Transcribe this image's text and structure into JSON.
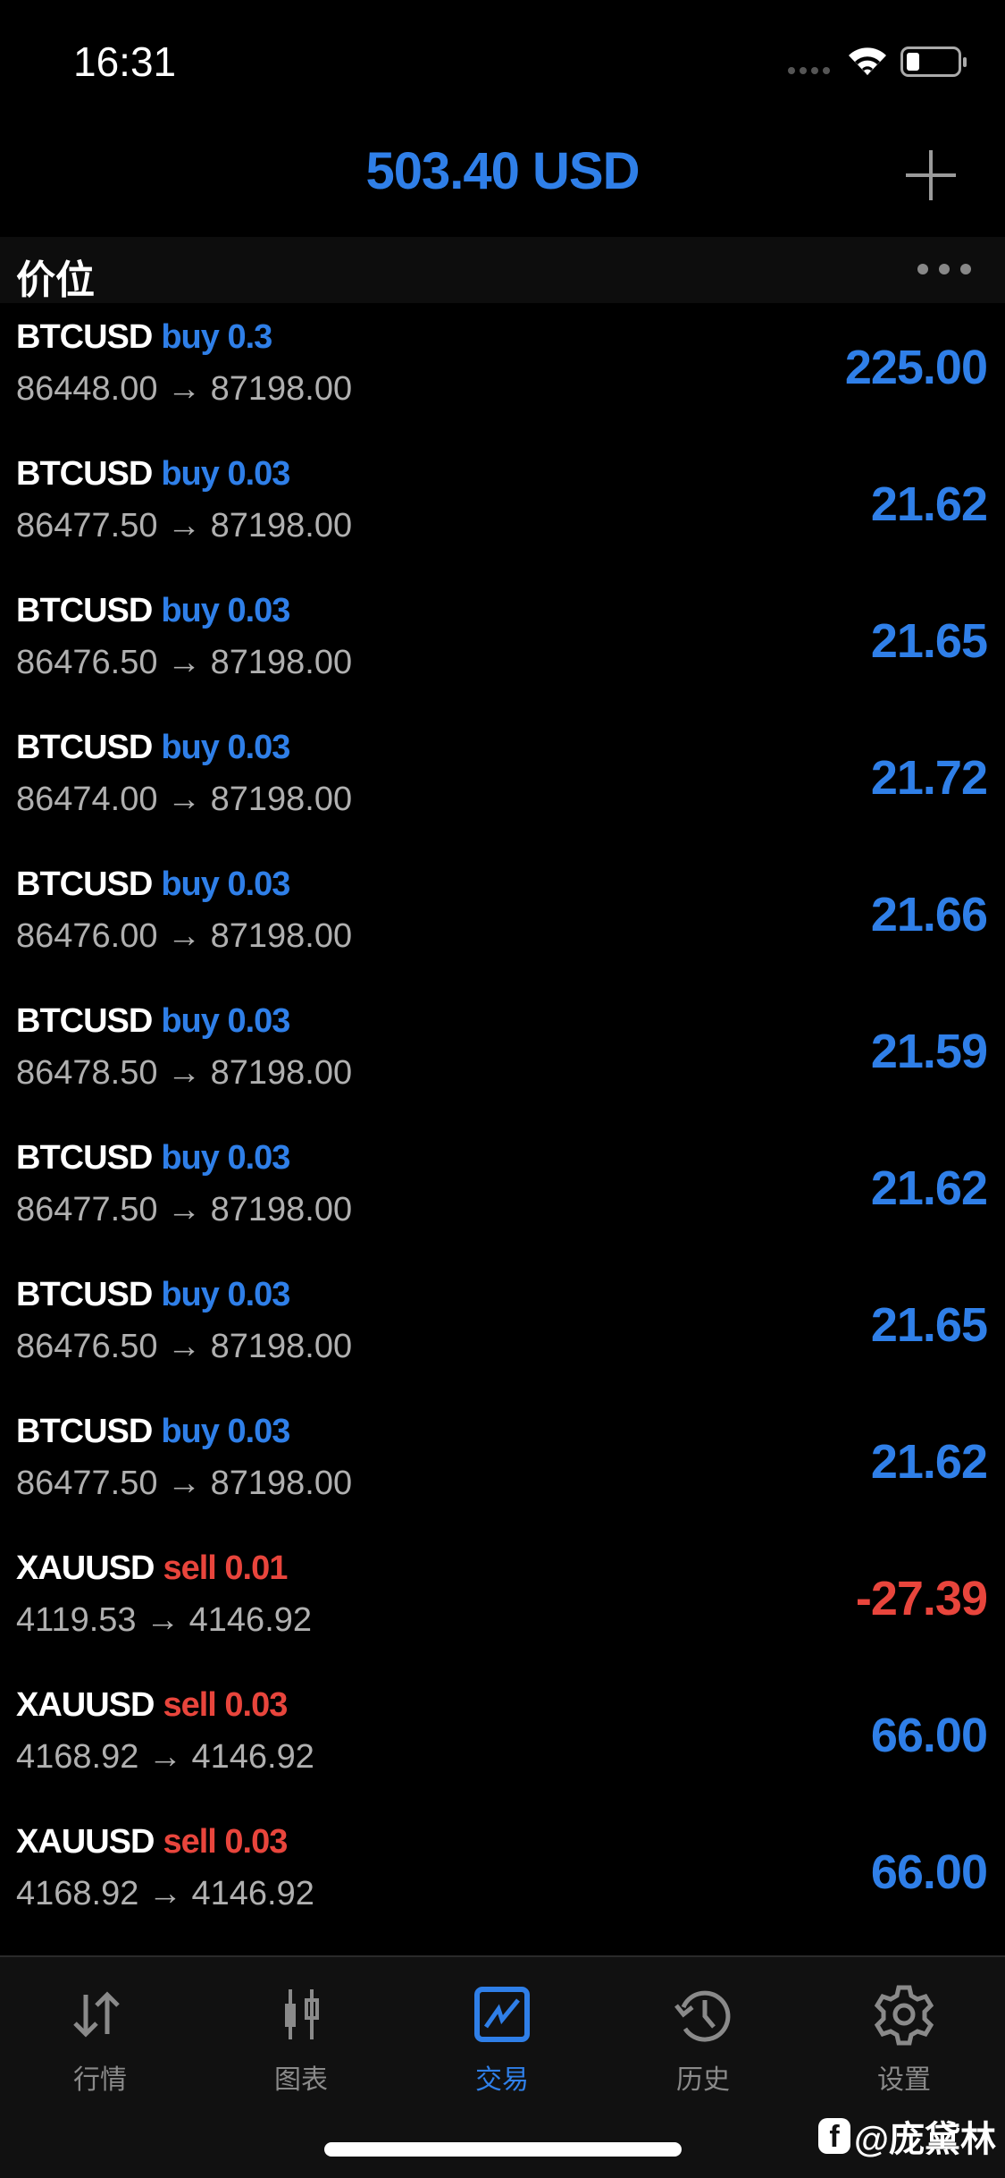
{
  "status_bar": {
    "time": "16:31",
    "signal_icon": "cellular-signal-icon",
    "wifi_icon": "wifi-icon",
    "battery_icon": "battery-low-icon"
  },
  "header": {
    "balance": "503.40 USD",
    "add_icon": "plus-icon"
  },
  "section": {
    "label": "价位",
    "more_icon": "ellipsis-icon"
  },
  "colors": {
    "accent": "#2f7fe8",
    "sell": "#e8453c",
    "price": "#b0b0b0"
  },
  "positions": [
    {
      "symbol": "BTCUSD",
      "side": "buy 0.3",
      "type": "buy",
      "prices": "86448.00 → 87198.00",
      "profit": "225.00"
    },
    {
      "symbol": "BTCUSD",
      "side": "buy 0.03",
      "type": "buy",
      "prices": "86477.50 → 87198.00",
      "profit": "21.62"
    },
    {
      "symbol": "BTCUSD",
      "side": "buy 0.03",
      "type": "buy",
      "prices": "86476.50 → 87198.00",
      "profit": "21.65"
    },
    {
      "symbol": "BTCUSD",
      "side": "buy 0.03",
      "type": "buy",
      "prices": "86474.00 → 87198.00",
      "profit": "21.72"
    },
    {
      "symbol": "BTCUSD",
      "side": "buy 0.03",
      "type": "buy",
      "prices": "86476.00 → 87198.00",
      "profit": "21.66"
    },
    {
      "symbol": "BTCUSD",
      "side": "buy 0.03",
      "type": "buy",
      "prices": "86478.50 → 87198.00",
      "profit": "21.59"
    },
    {
      "symbol": "BTCUSD",
      "side": "buy 0.03",
      "type": "buy",
      "prices": "86477.50 → 87198.00",
      "profit": "21.62"
    },
    {
      "symbol": "BTCUSD",
      "side": "buy 0.03",
      "type": "buy",
      "prices": "86476.50 → 87198.00",
      "profit": "21.65"
    },
    {
      "symbol": "BTCUSD",
      "side": "buy 0.03",
      "type": "buy",
      "prices": "86477.50 → 87198.00",
      "profit": "21.62"
    },
    {
      "symbol": "XAUUSD",
      "side": "sell 0.01",
      "type": "sell",
      "prices": "4119.53 → 4146.92",
      "profit": "-27.39"
    },
    {
      "symbol": "XAUUSD",
      "side": "sell 0.03",
      "type": "sell",
      "prices": "4168.92 → 4146.92",
      "profit": "66.00"
    },
    {
      "symbol": "XAUUSD",
      "side": "sell 0.03",
      "type": "sell",
      "prices": "4168.92 → 4146.92",
      "profit": "66.00"
    }
  ],
  "tabs": [
    {
      "label": "行情",
      "icon": "quotes-arrows-icon"
    },
    {
      "label": "图表",
      "icon": "candlestick-chart-icon"
    },
    {
      "label": "交易",
      "icon": "trade-chart-icon",
      "active": true
    },
    {
      "label": "历史",
      "icon": "history-clock-icon"
    },
    {
      "label": "设置",
      "icon": "gear-icon"
    }
  ],
  "watermark": {
    "text": "@庞黛林",
    "icon": "facebook-icon"
  }
}
